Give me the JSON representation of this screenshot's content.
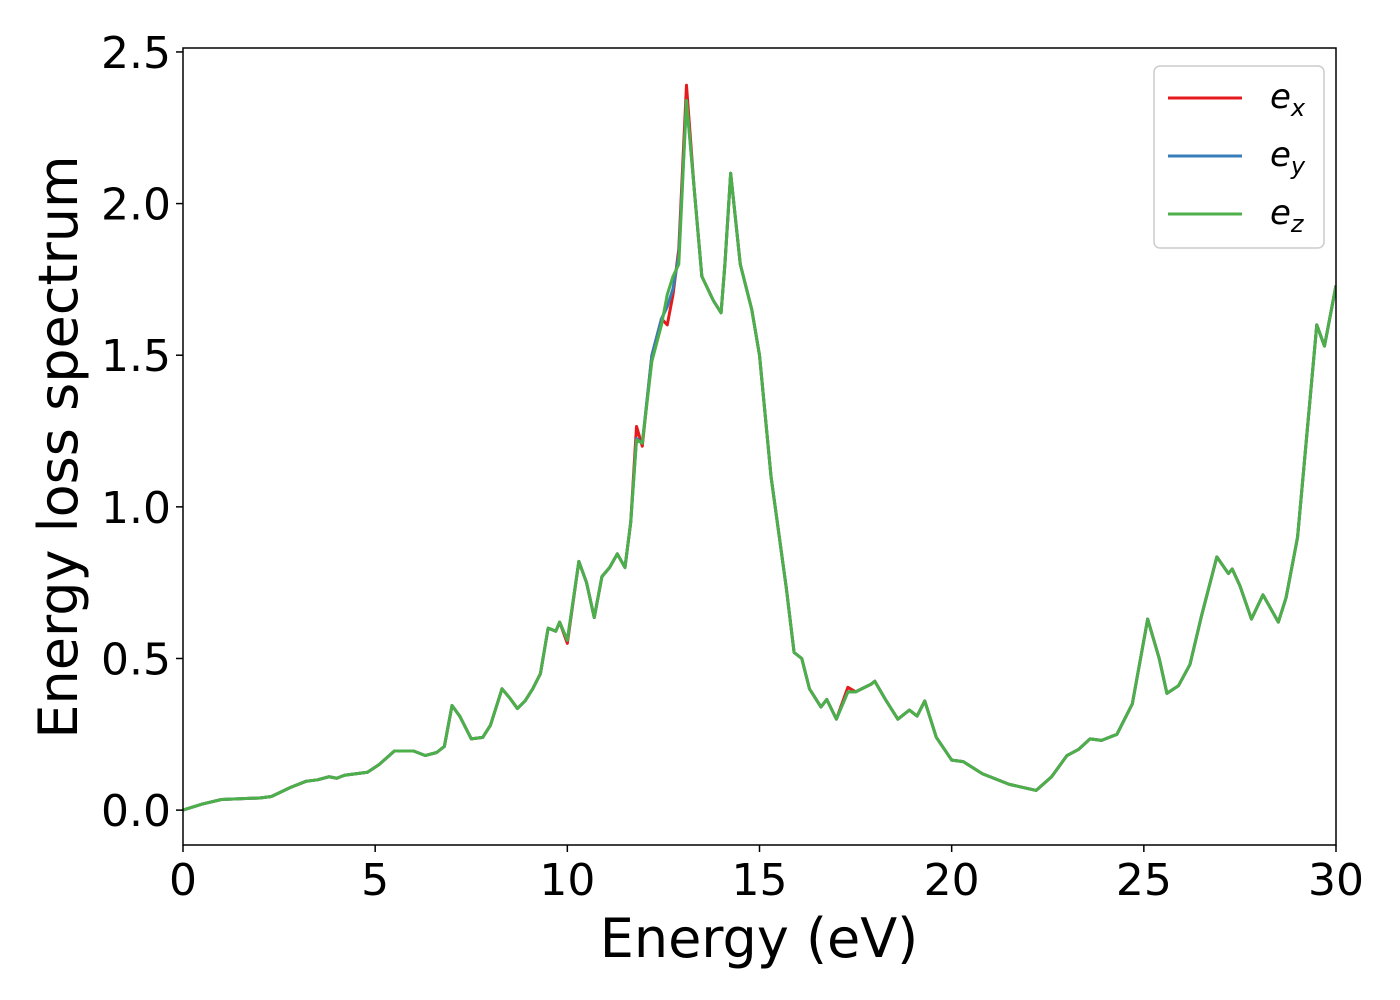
{
  "chart_data": {
    "type": "line",
    "xlabel": "Energy (eV)",
    "ylabel": "Energy loss spectrum",
    "x": [
      0,
      0.5,
      1,
      2,
      2.3,
      2.8,
      3.2,
      3.5,
      3.8,
      4,
      4.2,
      4.8,
      5.1,
      5.5,
      6,
      6.3,
      6.6,
      6.8,
      7,
      7.2,
      7.5,
      7.8,
      8,
      8.3,
      8.5,
      8.7,
      8.9,
      9.1,
      9.3,
      9.5,
      9.7,
      9.8,
      10,
      10.3,
      10.5,
      10.7,
      10.9,
      11.1,
      11.3,
      11.5,
      11.65,
      11.8,
      11.95,
      12.2,
      12.45,
      12.6,
      12.75,
      12.9,
      13.1,
      13.3,
      13.5,
      13.8,
      14,
      14.1,
      14.25,
      14.5,
      14.8,
      15,
      15.3,
      15.7,
      15.9,
      16.1,
      16.3,
      16.6,
      16.75,
      17,
      17.3,
      17.5,
      17.9,
      18,
      18.3,
      18.6,
      18.9,
      19.1,
      19.3,
      19.6,
      20,
      20.3,
      20.8,
      21.5,
      22.2,
      22.6,
      23,
      23.3,
      23.6,
      23.9,
      24.3,
      24.7,
      25.1,
      25.4,
      25.6,
      25.9,
      26.2,
      26.5,
      26.9,
      27.2,
      27.3,
      27.5,
      27.8,
      28.1,
      28.5,
      28.7,
      29,
      29.5,
      29.7,
      30
    ],
    "series": [
      {
        "name": "ex",
        "color": "#e41a1c",
        "values": [
          0,
          0.02,
          0.035,
          0.04,
          0.045,
          0.075,
          0.095,
          0.1,
          0.11,
          0.105,
          0.115,
          0.125,
          0.15,
          0.195,
          0.195,
          0.18,
          0.19,
          0.21,
          0.345,
          0.31,
          0.235,
          0.24,
          0.28,
          0.4,
          0.37,
          0.335,
          0.36,
          0.4,
          0.45,
          0.6,
          0.59,
          0.62,
          0.55,
          0.82,
          0.75,
          0.635,
          0.77,
          0.8,
          0.845,
          0.8,
          0.95,
          1.265,
          1.2,
          1.5,
          1.62,
          1.6,
          1.7,
          1.85,
          2.39,
          2.05,
          1.76,
          1.68,
          1.64,
          1.8,
          2.1,
          1.8,
          1.65,
          1.5,
          1.1,
          0.73,
          0.52,
          0.5,
          0.4,
          0.34,
          0.365,
          0.3,
          0.405,
          0.39,
          0.415,
          0.425,
          0.36,
          0.3,
          0.33,
          0.31,
          0.36,
          0.24,
          0.165,
          0.16,
          0.12,
          0.085,
          0.065,
          0.11,
          0.18,
          0.2,
          0.235,
          0.23,
          0.25,
          0.35,
          0.63,
          0.5,
          0.385,
          0.41,
          0.48,
          0.64,
          0.835,
          0.78,
          0.795,
          0.74,
          0.63,
          0.71,
          0.62,
          0.7,
          0.9,
          1.6,
          1.53,
          1.73
        ]
      },
      {
        "name": "ey",
        "color": "#377eb8",
        "values": [
          0,
          0.02,
          0.035,
          0.04,
          0.045,
          0.075,
          0.095,
          0.1,
          0.11,
          0.105,
          0.115,
          0.125,
          0.15,
          0.195,
          0.195,
          0.18,
          0.19,
          0.21,
          0.345,
          0.31,
          0.235,
          0.24,
          0.28,
          0.4,
          0.37,
          0.335,
          0.36,
          0.4,
          0.45,
          0.6,
          0.59,
          0.62,
          0.56,
          0.82,
          0.75,
          0.635,
          0.77,
          0.8,
          0.845,
          0.8,
          0.95,
          1.225,
          1.21,
          1.5,
          1.62,
          1.66,
          1.72,
          1.83,
          2.34,
          2.05,
          1.76,
          1.68,
          1.64,
          1.8,
          2.1,
          1.8,
          1.65,
          1.5,
          1.1,
          0.73,
          0.52,
          0.5,
          0.4,
          0.34,
          0.365,
          0.3,
          0.39,
          0.39,
          0.415,
          0.425,
          0.36,
          0.3,
          0.33,
          0.31,
          0.36,
          0.24,
          0.165,
          0.16,
          0.12,
          0.085,
          0.065,
          0.11,
          0.18,
          0.2,
          0.235,
          0.23,
          0.25,
          0.35,
          0.63,
          0.5,
          0.385,
          0.41,
          0.48,
          0.64,
          0.835,
          0.78,
          0.795,
          0.74,
          0.63,
          0.71,
          0.62,
          0.7,
          0.9,
          1.6,
          1.53,
          1.73
        ]
      },
      {
        "name": "ez",
        "color": "#4daf4a",
        "values": [
          0,
          0.02,
          0.035,
          0.04,
          0.045,
          0.075,
          0.095,
          0.1,
          0.11,
          0.105,
          0.115,
          0.125,
          0.15,
          0.195,
          0.195,
          0.18,
          0.19,
          0.21,
          0.345,
          0.31,
          0.235,
          0.24,
          0.28,
          0.4,
          0.37,
          0.335,
          0.36,
          0.4,
          0.45,
          0.6,
          0.59,
          0.62,
          0.56,
          0.82,
          0.75,
          0.635,
          0.77,
          0.8,
          0.845,
          0.8,
          0.95,
          1.22,
          1.21,
          1.48,
          1.6,
          1.7,
          1.76,
          1.8,
          2.34,
          2.05,
          1.76,
          1.68,
          1.64,
          1.8,
          2.1,
          1.8,
          1.65,
          1.5,
          1.1,
          0.73,
          0.52,
          0.5,
          0.4,
          0.34,
          0.365,
          0.3,
          0.39,
          0.39,
          0.415,
          0.425,
          0.36,
          0.3,
          0.33,
          0.31,
          0.36,
          0.24,
          0.165,
          0.16,
          0.12,
          0.085,
          0.065,
          0.11,
          0.18,
          0.2,
          0.235,
          0.23,
          0.25,
          0.35,
          0.63,
          0.5,
          0.385,
          0.41,
          0.48,
          0.64,
          0.835,
          0.78,
          0.795,
          0.74,
          0.63,
          0.71,
          0.62,
          0.7,
          0.9,
          1.6,
          1.53,
          1.73
        ]
      }
    ],
    "xlim": [
      0,
      30
    ],
    "xticks": [
      0,
      5,
      10,
      15,
      20,
      25,
      30
    ],
    "ylim": [
      -0.115,
      2.513
    ],
    "yticks": [
      {
        "value": 0,
        "label": "0.0"
      },
      0.5,
      {
        "value": 1,
        "label": "1.0"
      },
      1.5,
      {
        "value": 2,
        "label": "2.0"
      },
      2.5
    ],
    "grid": false,
    "legend": "upper right"
  }
}
